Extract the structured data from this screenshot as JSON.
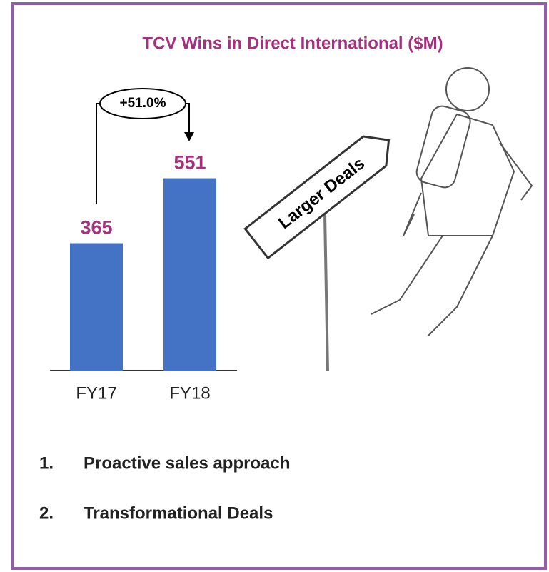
{
  "chart_data": {
    "type": "bar",
    "title": "TCV Wins in Direct International ($M)",
    "categories": [
      "FY17",
      "FY18"
    ],
    "values": [
      365,
      551
    ],
    "color": "#4472c4",
    "value_label_color": "#a3317c",
    "annotation": "+51.0%"
  },
  "illustration": {
    "sign": "Larger Deals"
  },
  "list": {
    "items": [
      {
        "number": "1.",
        "text": "Proactive sales approach"
      },
      {
        "number": "2.",
        "text": "Transformational Deals"
      }
    ]
  }
}
